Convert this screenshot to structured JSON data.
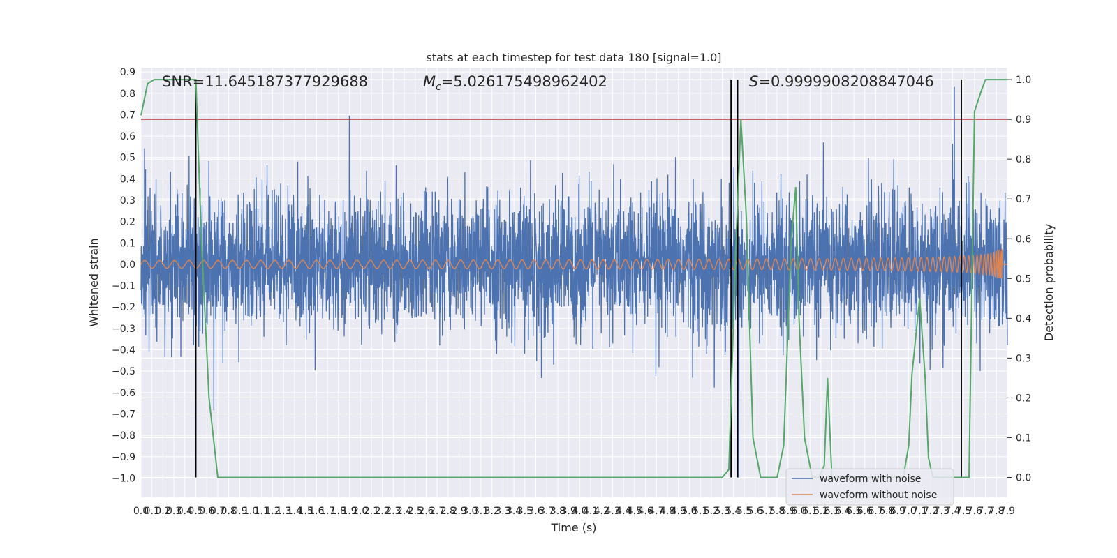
{
  "chart_data": {
    "type": "line",
    "title": "stats at each timestep for test data 180 [signal=1.0]",
    "xlabel": "Time (s)",
    "ylabel": "Whitened strain",
    "y2label": "Detection probability",
    "xlim": [
      0.0,
      7.9
    ],
    "ylim": [
      -1.09,
      0.92
    ],
    "y2lim": [
      -0.05,
      1.03
    ],
    "grid": true,
    "x_ticks": [
      "0.0",
      "0.1",
      "0.2",
      "0.3",
      "0.4",
      "0.5",
      "0.6",
      "0.7",
      "0.8",
      "0.9",
      "1.0",
      "1.1",
      "1.2",
      "1.3",
      "1.4",
      "1.5",
      "1.6",
      "1.7",
      "1.8",
      "1.9",
      "2.0",
      "2.1",
      "2.2",
      "2.3",
      "2.4",
      "2.5",
      "2.6",
      "2.7",
      "2.8",
      "2.9",
      "3.0",
      "3.1",
      "3.2",
      "3.3",
      "3.4",
      "3.5",
      "3.6",
      "3.7",
      "3.8",
      "3.9",
      "4.0",
      "4.1",
      "4.2",
      "4.3",
      "4.4",
      "4.5",
      "4.6",
      "4.7",
      "4.8",
      "4.9",
      "5.0",
      "5.1",
      "5.2",
      "5.3",
      "5.4",
      "5.5",
      "5.6",
      "5.7",
      "5.8",
      "5.9",
      "6.0",
      "6.1",
      "6.2",
      "6.3",
      "6.4",
      "6.5",
      "6.6",
      "6.7",
      "6.8",
      "6.9",
      "7.0",
      "7.1",
      "7.2",
      "7.3",
      "7.4",
      "7.5",
      "7.6",
      "7.7",
      "7.8",
      "7.9"
    ],
    "y_ticks": [
      "0.9",
      "0.8",
      "0.7",
      "0.6",
      "0.5",
      "0.4",
      "0.3",
      "0.2",
      "0.1",
      "0.0",
      "−0.1",
      "−0.2",
      "−0.3",
      "−0.4",
      "−0.5",
      "−0.6",
      "−0.7",
      "−0.8",
      "−0.9",
      "−1.0"
    ],
    "y_tick_values": [
      0.9,
      0.8,
      0.7,
      0.6,
      0.5,
      0.4,
      0.3,
      0.2,
      0.1,
      0.0,
      -0.1,
      -0.2,
      -0.3,
      -0.4,
      -0.5,
      -0.6,
      -0.7,
      -0.8,
      -0.9,
      -1.0
    ],
    "y2_ticks": [
      "1.0",
      "0.9",
      "0.8",
      "0.7",
      "0.6",
      "0.5",
      "0.4",
      "0.3",
      "0.2",
      "0.1",
      "0.0"
    ],
    "y2_tick_values": [
      1.0,
      0.9,
      0.8,
      0.7,
      0.6,
      0.5,
      0.4,
      0.3,
      0.2,
      0.1,
      0.0
    ],
    "annotations": {
      "snr": "SNR=11.645187377929688",
      "mc_symbol": "M",
      "mc_sub": "c",
      "mc_value": "=5.026175498962402",
      "s_symbol": "S",
      "s_value": "=0.9999908208847046"
    },
    "threshold": {
      "value": 0.9,
      "color": "#c44e52"
    },
    "vertical_lines": [
      0.5,
      5.38,
      5.44,
      7.48
    ],
    "series": [
      {
        "name": "waveform with noise",
        "color": "#4c72b0",
        "noise_std": 0.16,
        "peak_amplitude": 0.83
      },
      {
        "name": "waveform without noise",
        "color": "#dd8452",
        "start_amplitude": 0.02,
        "end_amplitude": 0.2,
        "merger_time": 7.85
      },
      {
        "name": "detection probability",
        "color": "#55a868",
        "axis": "right",
        "x": [
          0.0,
          0.06,
          0.12,
          0.2,
          0.3,
          0.4,
          0.5,
          0.55,
          0.62,
          0.7,
          1.0,
          2.0,
          3.0,
          4.0,
          5.0,
          5.3,
          5.36,
          5.42,
          5.47,
          5.52,
          5.58,
          5.65,
          5.75,
          5.8,
          5.86,
          5.93,
          5.97,
          6.0,
          6.05,
          6.12,
          6.18,
          6.23,
          6.26,
          6.3,
          6.36,
          6.5,
          6.8,
          6.95,
          7.0,
          7.03,
          7.1,
          7.15,
          7.18,
          7.22,
          7.28,
          7.35,
          7.45,
          7.5,
          7.55,
          7.6,
          7.66,
          7.7,
          7.8,
          7.9
        ],
        "y": [
          0.91,
          0.99,
          1.0,
          1.0,
          1.0,
          1.0,
          1.0,
          0.6,
          0.2,
          0.0,
          0.0,
          0.0,
          0.0,
          0.0,
          0.0,
          0.0,
          0.02,
          0.55,
          0.9,
          0.65,
          0.1,
          0.0,
          0.0,
          0.0,
          0.08,
          0.6,
          0.73,
          0.4,
          0.1,
          0.0,
          0.0,
          0.03,
          0.25,
          0.0,
          0.0,
          0.0,
          0.0,
          0.0,
          0.08,
          0.26,
          0.45,
          0.25,
          0.05,
          0.0,
          0.0,
          0.0,
          0.0,
          0.0,
          0.0,
          0.92,
          0.97,
          1.0,
          1.0,
          1.0
        ]
      }
    ]
  },
  "legend": {
    "items": [
      {
        "label": "waveform with noise",
        "color": "#4c72b0"
      },
      {
        "label": "waveform without noise",
        "color": "#dd8452"
      }
    ]
  }
}
